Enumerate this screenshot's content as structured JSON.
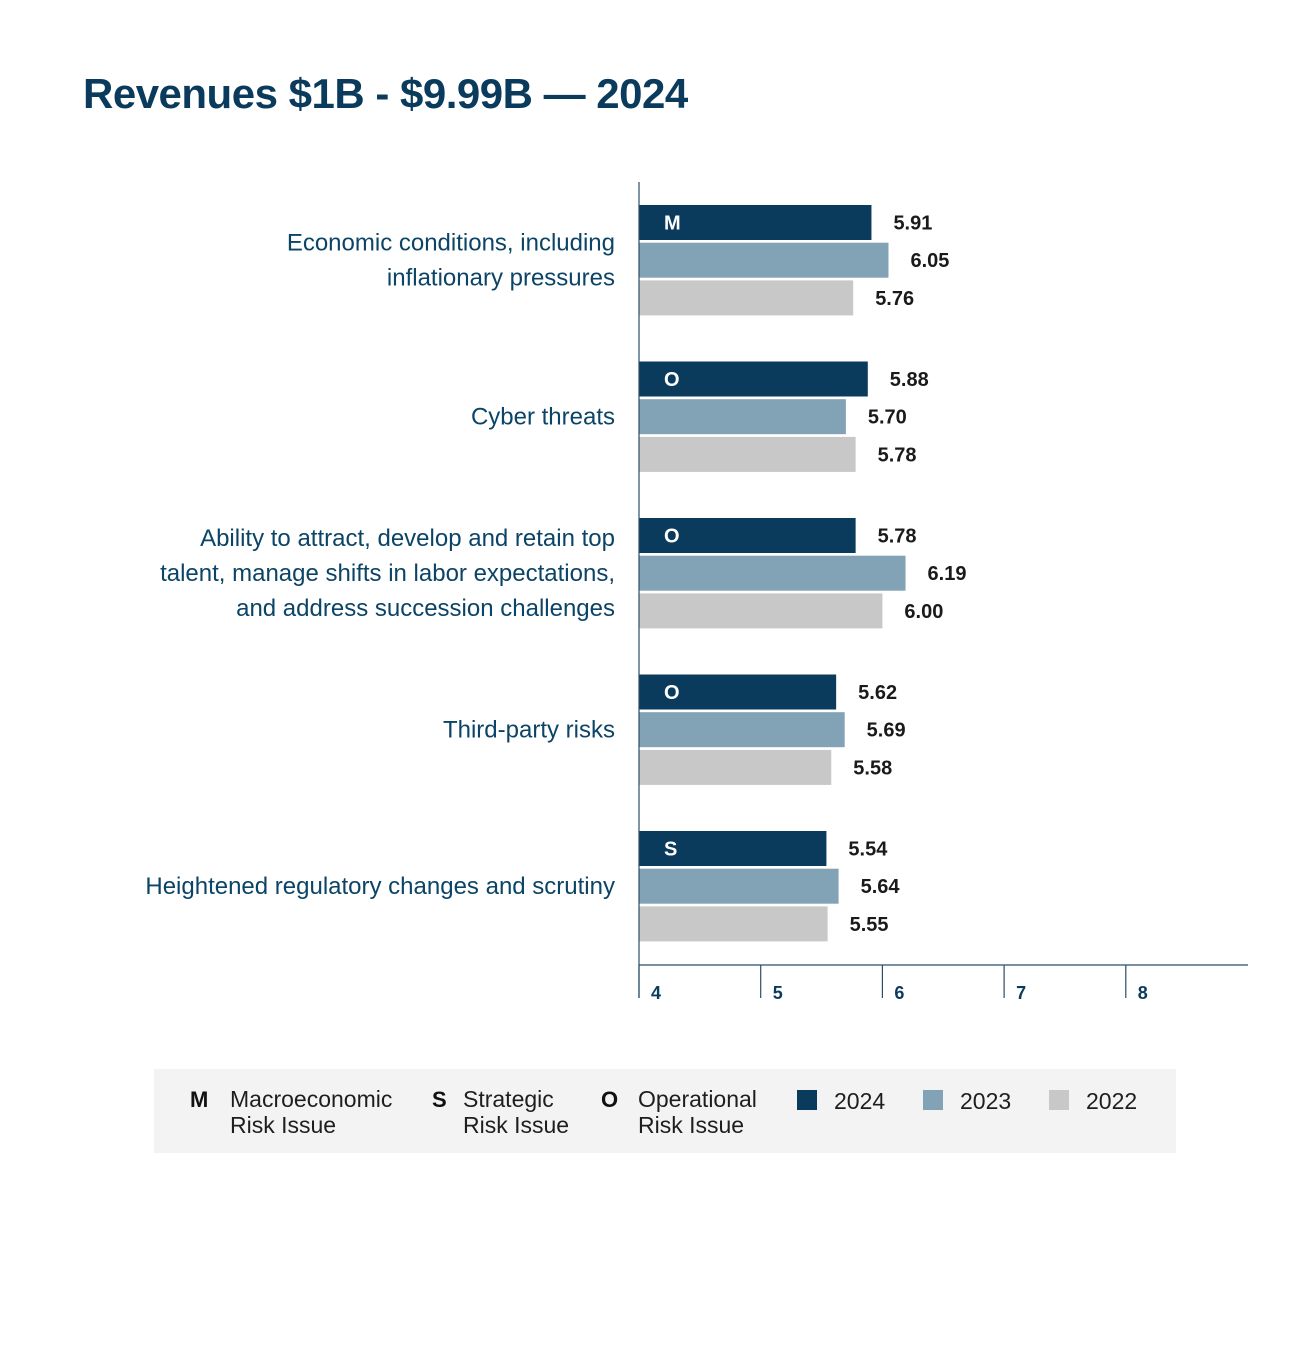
{
  "title": "Revenues $1B - $9.99B — 2024",
  "chart_data": {
    "type": "bar",
    "orientation": "horizontal",
    "categories": [
      [
        "Economic conditions, including",
        "inflationary pressures"
      ],
      [
        "Cyber threats"
      ],
      [
        "Ability to attract, develop and retain top",
        "talent, manage shifts in labor expectations,",
        "and address succession challenges"
      ],
      [
        "Third-party risks"
      ],
      [
        "Heightened regulatory changes and scrutiny"
      ]
    ],
    "risk_codes": [
      "M",
      "O",
      "O",
      "O",
      "S"
    ],
    "series": [
      {
        "name": "2024",
        "color": "#0b3b5c",
        "values": [
          5.91,
          5.88,
          5.78,
          5.62,
          5.54
        ],
        "labels": [
          "5.91",
          "5.88",
          "5.78",
          "5.62",
          "5.54"
        ]
      },
      {
        "name": "2023",
        "color": "#82a2b6",
        "values": [
          6.05,
          5.7,
          6.19,
          5.69,
          5.64
        ],
        "labels": [
          "6.05",
          "5.70",
          "6.19",
          "5.69",
          "5.64"
        ]
      },
      {
        "name": "2022",
        "color": "#c8c8c8",
        "values": [
          5.76,
          5.78,
          6.0,
          5.58,
          5.55
        ],
        "labels": [
          "5.76",
          "5.78",
          "6.00",
          "5.58",
          "5.55"
        ]
      }
    ],
    "xlim": [
      4,
      9
    ],
    "xticks": [
      4,
      5,
      6,
      7,
      8
    ],
    "xtick_labels": [
      "4",
      "5",
      "6",
      "7",
      "8"
    ],
    "grid": false,
    "legend_position": "bottom"
  },
  "legend": {
    "risk_types": [
      {
        "code": "M",
        "line1": "Macroeconomic",
        "line2": "Risk Issue"
      },
      {
        "code": "S",
        "line1": "Strategic",
        "line2": "Risk Issue"
      },
      {
        "code": "O",
        "line1": "Operational",
        "line2": "Risk Issue"
      }
    ],
    "years": [
      {
        "label": "2024",
        "color": "#0b3b5c"
      },
      {
        "label": "2023",
        "color": "#82a2b6"
      },
      {
        "label": "2022",
        "color": "#c8c8c8"
      }
    ]
  }
}
